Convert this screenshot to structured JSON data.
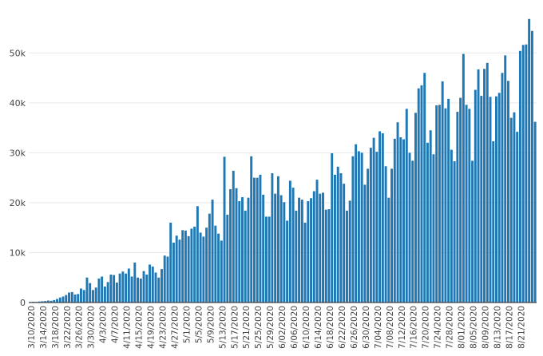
{
  "chart_data": {
    "type": "bar",
    "title": "",
    "xlabel": "",
    "ylabel": "",
    "ylim": [
      0,
      59000
    ],
    "y_ticks": [
      0,
      10000,
      20000,
      30000,
      40000,
      50000
    ],
    "y_tick_labels": [
      "0",
      "10k",
      "20k",
      "30k",
      "40k",
      "50k"
    ],
    "grid": true,
    "x_tick_labels": [
      "3/10/2020",
      "3/14/2020",
      "3/18/2020",
      "3/22/2020",
      "3/26/2020",
      "3/30/2020",
      "4/3/2020",
      "4/7/2020",
      "4/11/2020",
      "4/15/2020",
      "4/19/2020",
      "4/23/2020",
      "4/27/2020",
      "5/1/2020",
      "5/5/2020",
      "5/9/2020",
      "5/13/2020",
      "5/17/2020",
      "5/21/2020",
      "5/25/2020",
      "5/29/2020",
      "6/02/2020",
      "6/06/2020",
      "6/10/2020",
      "6/14/2020",
      "6/18/2020",
      "6/22/2020",
      "6/26/2020",
      "6/30/2020",
      "7/04/2020",
      "7/08/2020",
      "7/12/2020",
      "7/16/2020",
      "7/20/2020",
      "7/24/2020",
      "7/28/2020",
      "8/01/2020",
      "8/05/2020",
      "8/09/2020",
      "8/13/2020",
      "8/17/2020",
      "8/21/2020"
    ],
    "values": [
      100,
      150,
      120,
      200,
      250,
      300,
      400,
      350,
      500,
      700,
      1000,
      1200,
      1500,
      2000,
      2100,
      1600,
      1700,
      2800,
      2500,
      5000,
      3900,
      2500,
      3000,
      4800,
      5200,
      3200,
      4100,
      5600,
      5500,
      4000,
      5800,
      6200,
      5800,
      6800,
      5200,
      8000,
      5000,
      4800,
      6300,
      5600,
      7600,
      7200,
      6000,
      5000,
      6700,
      9400,
      9200,
      16000,
      12000,
      13400,
      12600,
      14500,
      14400,
      13300,
      14800,
      15200,
      19300,
      14000,
      13200,
      15000,
      17800,
      20600,
      15400,
      13800,
      12400,
      29200,
      17600,
      22700,
      26400,
      22900,
      20300,
      21100,
      18400,
      21000,
      29300,
      25000,
      25000,
      25600,
      21600,
      17200,
      17200,
      25900,
      21800,
      25300,
      21500,
      20100,
      16400,
      24400,
      23000,
      18400,
      21000,
      20600,
      16000,
      20300,
      20900,
      22300,
      24600,
      21800,
      22000,
      18600,
      18700,
      29900,
      25600,
      27200,
      25900,
      23800,
      18400,
      20400,
      29300,
      31700,
      30300,
      30000,
      23600,
      26800,
      31000,
      33000,
      30200,
      34300,
      33900,
      27300,
      21000,
      26800,
      32800,
      36100,
      33100,
      32700,
      38800,
      30000,
      28400,
      38000,
      42900,
      43500,
      46000,
      32000,
      34500,
      29700,
      39500,
      39600,
      44300,
      38900,
      40800,
      30600,
      28300,
      38200,
      41000,
      49800,
      39600,
      38800,
      28400,
      42600,
      46700,
      41400,
      46800,
      48000,
      41200,
      32300,
      41300,
      42000,
      46000,
      49500,
      44400,
      37000,
      38100,
      34200,
      50400,
      51600,
      51700,
      56800,
      54400,
      36200
    ]
  }
}
